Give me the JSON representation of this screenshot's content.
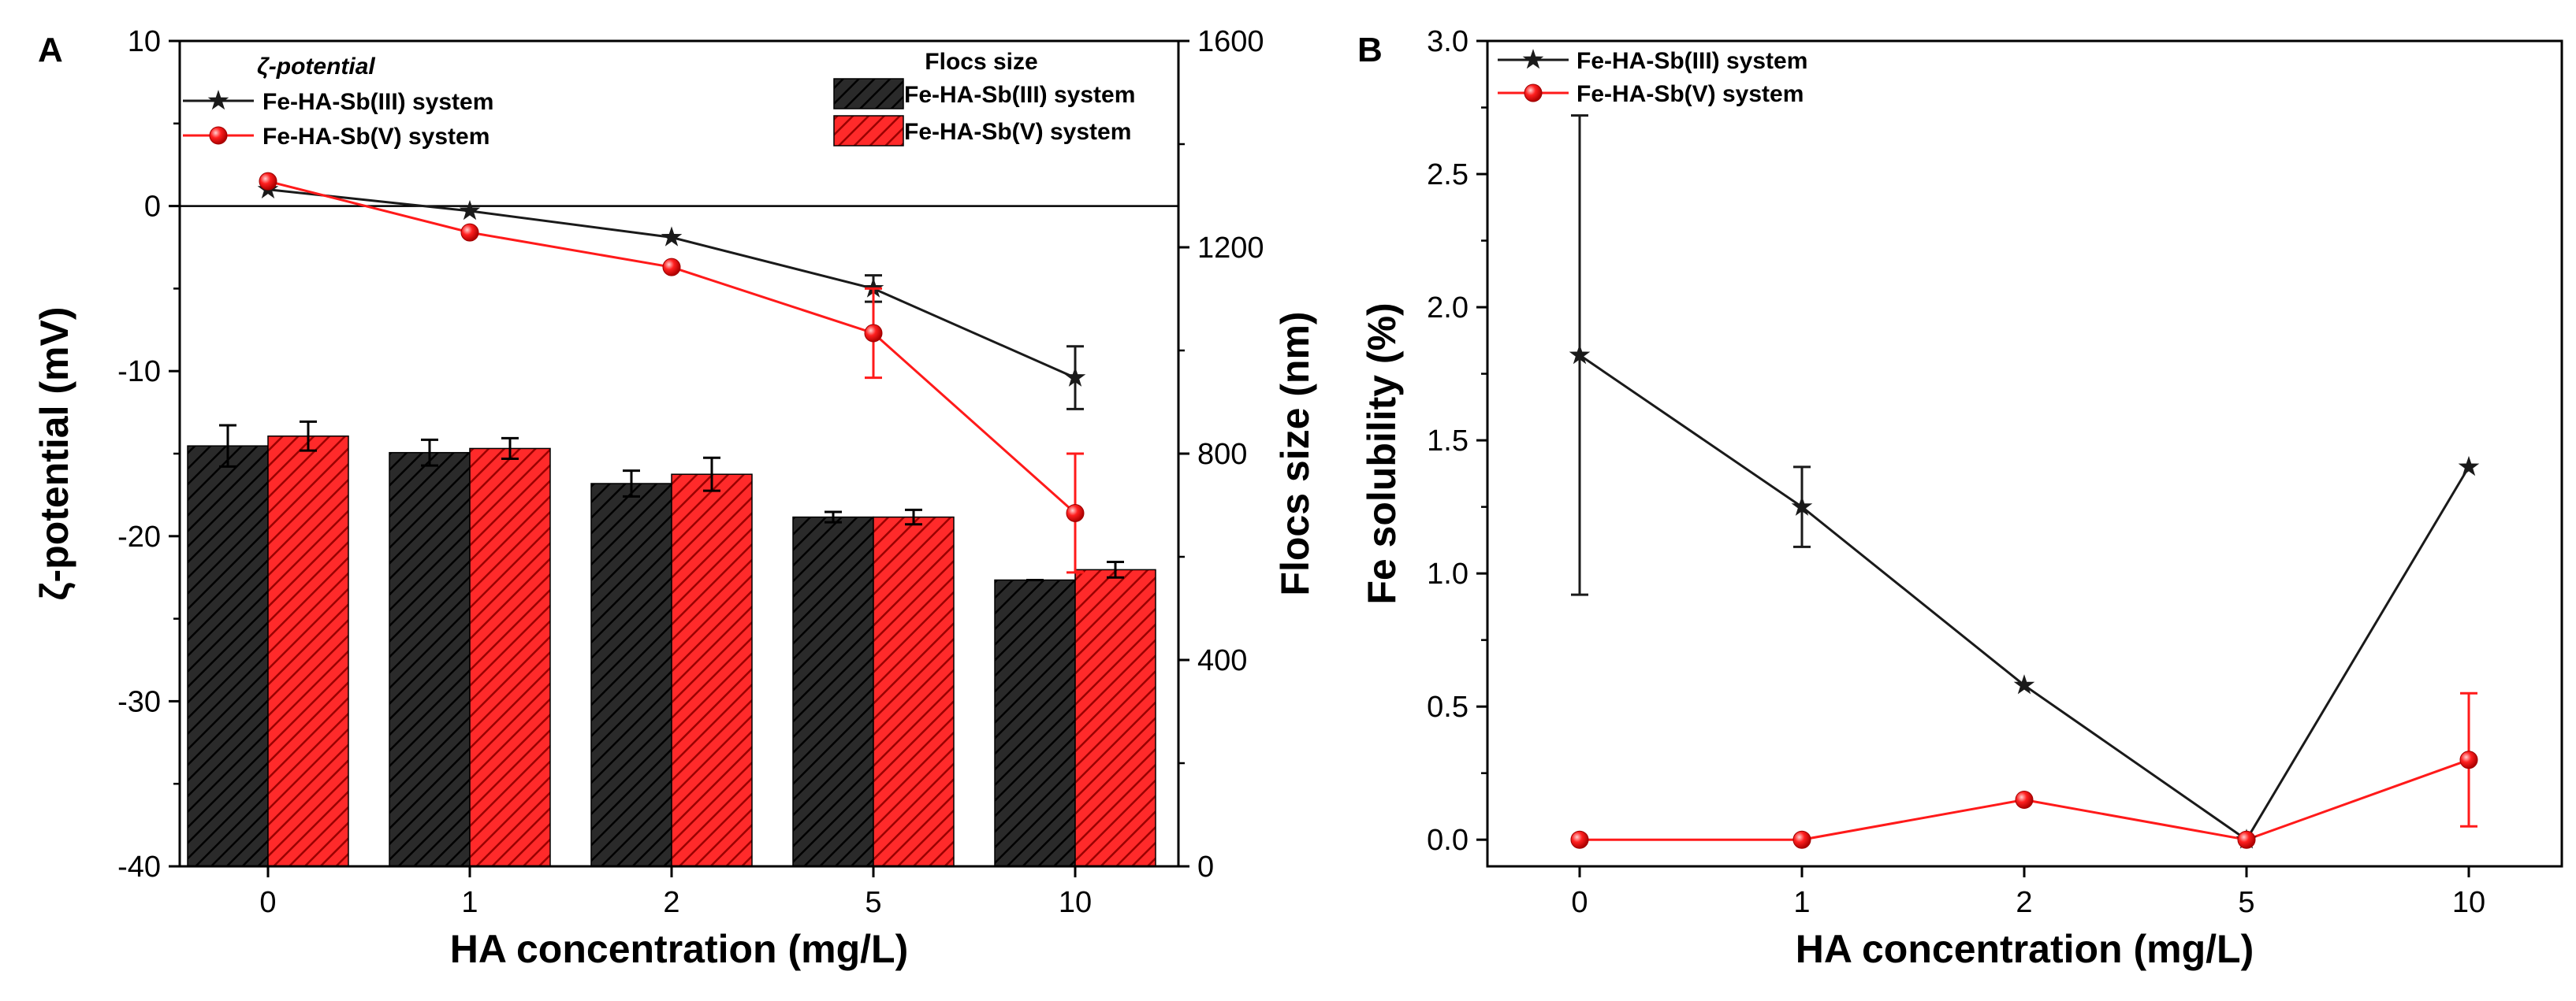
{
  "colors": {
    "black_series": "#1a1a1a",
    "red_series": "#ff1a1a",
    "bar_black": "#2a2a2a",
    "bar_red": "#ff2a2a"
  },
  "chart_data": [
    {
      "panel": "A",
      "type": "bar+line",
      "categories": [
        "0",
        "1",
        "2",
        "5",
        "10"
      ],
      "xlabel": "HA concentration (mg/L)",
      "ylabel_left": "ζ-potential (mV)",
      "ylabel_right": "Flocs size (nm)",
      "ylim_left": [
        -40,
        10
      ],
      "ylim_right": [
        0,
        1600
      ],
      "yticks_left": [
        "10",
        "0",
        "-10",
        "-20",
        "-30",
        "-40"
      ],
      "yticks_right": [
        "1600",
        "1200",
        "800",
        "400",
        "0"
      ],
      "zero_line": true,
      "legend_line_title": "ζ-potential",
      "legend_bar_title": "Flocs size",
      "line_series": [
        {
          "name": "Fe-HA-Sb(III) system",
          "color": "#1a1a1a",
          "marker": "star",
          "values": [
            1.0,
            -0.3,
            -1.9,
            -5.0,
            -10.4
          ],
          "errors": [
            0,
            0,
            0,
            0.8,
            1.9
          ]
        },
        {
          "name": "Fe-HA-Sb(V) system",
          "color": "#ff1a1a",
          "marker": "circle",
          "values": [
            1.5,
            -1.6,
            -3.7,
            -7.7,
            -18.6
          ],
          "errors": [
            0,
            0,
            0,
            2.7,
            3.6
          ]
        }
      ],
      "bar_series": [
        {
          "name": "Fe-HA-Sb(III) system",
          "color": "#2a2a2a",
          "values": [
            815,
            802,
            742,
            677,
            555
          ],
          "errors": [
            40,
            25,
            25,
            10,
            0
          ]
        },
        {
          "name": "Fe-HA-Sb(V) system",
          "color": "#ff2a2a",
          "values": [
            834,
            810,
            760,
            677,
            575
          ],
          "errors": [
            28,
            20,
            32,
            14,
            15
          ]
        }
      ]
    },
    {
      "panel": "B",
      "type": "line",
      "categories": [
        "0",
        "1",
        "2",
        "5",
        "10"
      ],
      "xlabel": "HA concentration (mg/L)",
      "ylabel": "Fe solubility (%)",
      "ylim": [
        -0.1,
        3.0
      ],
      "yticks": [
        "0.0",
        "0.5",
        "1.0",
        "1.5",
        "2.0",
        "2.5",
        "3.0"
      ],
      "legend": "top-left",
      "series": [
        {
          "name": "Fe-HA-Sb(III) system",
          "color": "#1a1a1a",
          "marker": "star",
          "values": [
            1.82,
            1.25,
            0.58,
            0.0,
            1.4
          ],
          "errors": [
            0.9,
            0.15,
            0,
            0,
            0
          ]
        },
        {
          "name": "Fe-HA-Sb(V) system",
          "color": "#ff1a1a",
          "marker": "circle",
          "values": [
            0.0,
            0.0,
            0.15,
            0.0,
            0.3
          ],
          "errors": [
            0,
            0,
            0,
            0,
            0.25
          ]
        }
      ]
    }
  ]
}
